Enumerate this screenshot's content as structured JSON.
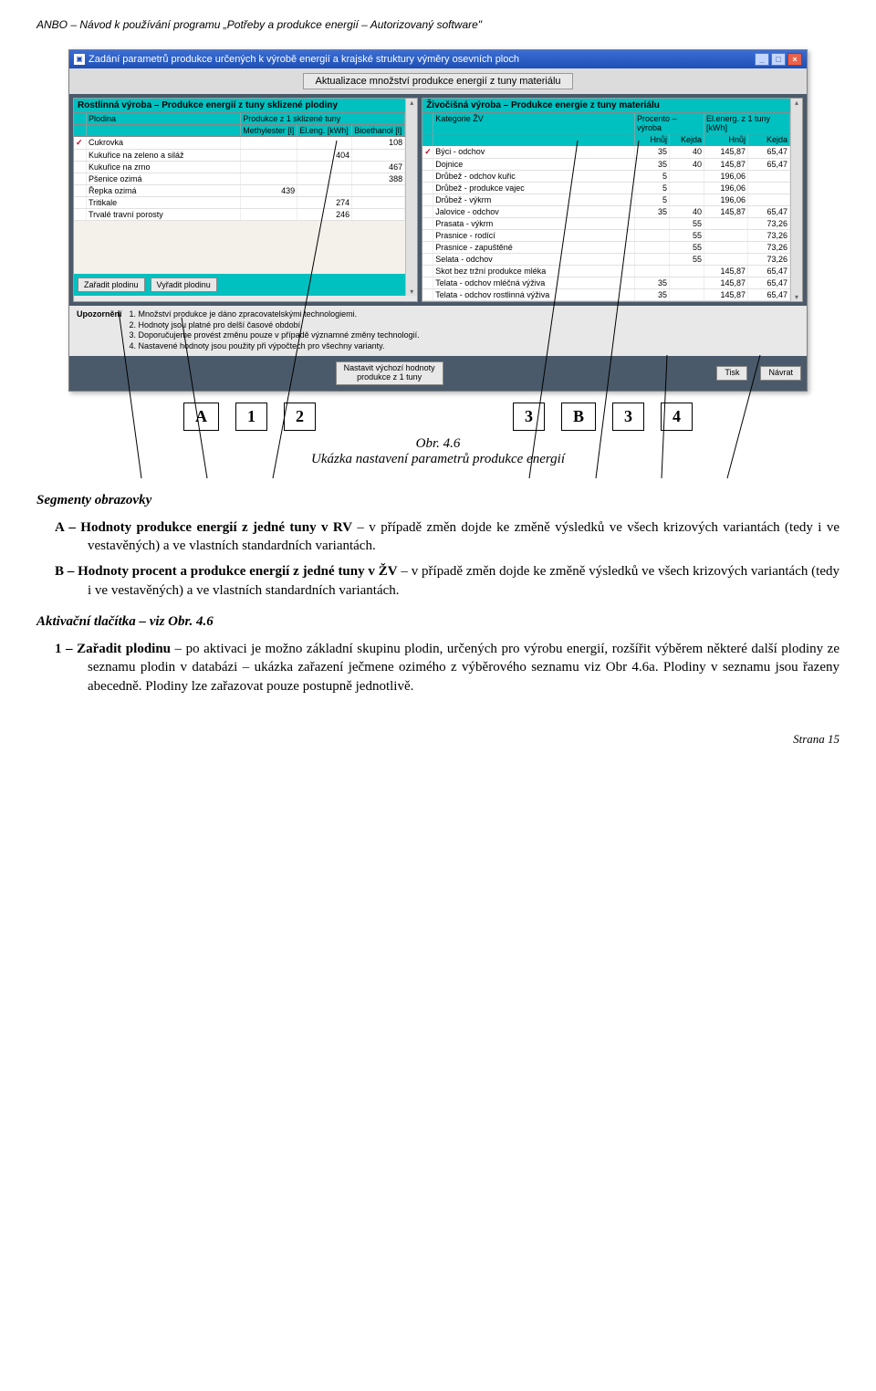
{
  "doc_header": "ANBO – Návod k používání programu „Potřeby a produkce energií – Autorizovaný software\"",
  "window": {
    "title": "Zadání parametrů produkce určených k výrobě energií a krajské struktury výměry osevních ploch",
    "subtitle": "Aktualizace množství produkce energií z tuny materiálu",
    "panel_left": {
      "title": "Rostlinná výroba – Produkce energií z tuny sklizené plodiny",
      "head_col1": "Plodina",
      "head_group": "Produkce z 1 sklizené tuny",
      "head_c2": "Methylester [l]",
      "head_c3": "El.eng. [kWh]",
      "head_c4": "Bioethanol [l]",
      "rows": [
        {
          "chk": "✓",
          "name": "Cukrovka",
          "me": "",
          "ee": "",
          "be": "108"
        },
        {
          "chk": "",
          "name": "Kukuřice na zeleno a siláž",
          "me": "",
          "ee": "404",
          "be": ""
        },
        {
          "chk": "",
          "name": "Kukuřice na zrno",
          "me": "",
          "ee": "",
          "be": "467"
        },
        {
          "chk": "",
          "name": "Pšenice ozimá",
          "me": "",
          "ee": "",
          "be": "388"
        },
        {
          "chk": "",
          "name": "Řepka ozimá",
          "me": "439",
          "ee": "",
          "be": ""
        },
        {
          "chk": "",
          "name": "Tritikale",
          "me": "",
          "ee": "274",
          "be": ""
        },
        {
          "chk": "",
          "name": "Trvalé travní porosty",
          "me": "",
          "ee": "246",
          "be": ""
        }
      ],
      "btn_add": "Zařadit plodinu",
      "btn_rem": "Vyřadit plodinu"
    },
    "panel_right": {
      "title": "Živočišná výroba – Produkce energie z tuny materiálu",
      "head_col1": "Kategorie ŽV",
      "head_group1": "Procento – výroba",
      "head_group2": "El.energ. z 1 tuny [kWh]",
      "sub_h1": "Hnůj",
      "sub_h2": "Kejda",
      "sub_h3": "Hnůj",
      "sub_h4": "Kejda",
      "rows": [
        {
          "chk": "✓",
          "name": "Býci - odchov",
          "p1": "35",
          "p2": "40",
          "e1": "145,87",
          "e2": "65,47"
        },
        {
          "chk": "",
          "name": "Dojnice",
          "p1": "35",
          "p2": "40",
          "e1": "145,87",
          "e2": "65,47"
        },
        {
          "chk": "",
          "name": "Drůbež - odchov kuřic",
          "p1": "5",
          "p2": "",
          "e1": "196,06",
          "e2": ""
        },
        {
          "chk": "",
          "name": "Drůbež - produkce vajec",
          "p1": "5",
          "p2": "",
          "e1": "196,06",
          "e2": ""
        },
        {
          "chk": "",
          "name": "Drůbež - výkrm",
          "p1": "5",
          "p2": "",
          "e1": "196,06",
          "e2": ""
        },
        {
          "chk": "",
          "name": "Jalovice - odchov",
          "p1": "35",
          "p2": "40",
          "e1": "145,87",
          "e2": "65,47"
        },
        {
          "chk": "",
          "name": "Prasata - výkrm",
          "p1": "",
          "p2": "55",
          "e1": "",
          "e2": "73,26"
        },
        {
          "chk": "",
          "name": "Prasnice - rodící",
          "p1": "",
          "p2": "55",
          "e1": "",
          "e2": "73,26"
        },
        {
          "chk": "",
          "name": "Prasnice - zapuštěné",
          "p1": "",
          "p2": "55",
          "e1": "",
          "e2": "73,26"
        },
        {
          "chk": "",
          "name": "Selata - odchov",
          "p1": "",
          "p2": "55",
          "e1": "",
          "e2": "73,26"
        },
        {
          "chk": "",
          "name": "Skot bez tržní produkce mléka",
          "p1": "",
          "p2": "",
          "e1": "145,87",
          "e2": "65,47"
        },
        {
          "chk": "",
          "name": "Telata - odchov mléčná výživa",
          "p1": "35",
          "p2": "",
          "e1": "145,87",
          "e2": "65,47"
        },
        {
          "chk": "",
          "name": "Telata - odchov rostlinná výživa",
          "p1": "35",
          "p2": "",
          "e1": "145,87",
          "e2": "65,47"
        }
      ]
    },
    "notice_label": "Upozornění",
    "notice_lines": [
      "1. Množství produkce je dáno zpracovatelskými technologiemi.",
      "2. Hodnoty jsou platné pro delší časové období.",
      "3. Doporučujeme provést změnu pouze v případě významné změny technologií.",
      "4. Nastavené hodnoty jsou použity při výpočtech pro všechny varianty."
    ],
    "btn_reset_l1": "Nastavit výchozí hodnoty",
    "btn_reset_l2": "produkce z 1 tuny",
    "btn_print": "Tisk",
    "btn_back": "Návrat"
  },
  "labels": {
    "A": "A",
    "n1": "1",
    "n2": "2",
    "n3": "3",
    "B": "B",
    "n3b": "3",
    "n4": "4"
  },
  "caption_l1": "Obr. 4.6",
  "caption_l2": "Ukázka nastavení parametrů produkce energií",
  "sec_seg": "Segmenty obrazovky",
  "seg_A_pre": "A – ",
  "seg_A_bold": "Hodnoty produkce energií z jedné tuny v RV",
  "seg_A_rest": " – v případě změn dojde ke změně výsledků ve všech krizových variantách (tedy i ve vestavěných) a ve vlastních standardních variantách.",
  "seg_B_pre": "B – ",
  "seg_B_bold": "Hodnoty procent a produkce energií z jedné tuny v ŽV",
  "seg_B_rest": " – v případě změn dojde ke změně výsledků ve všech krizových variantách (tedy i ve vestavěných) a ve vlastních standardních variantách.",
  "sec_act": "Aktivační tlačítka – viz Obr. 4.6",
  "act1_pre": "1 – ",
  "act1_bold": "Zařadit plodinu",
  "act1_rest": " – po aktivaci je možno základní skupinu plodin, určených pro výrobu energií, rozšířit výběrem některé další plodiny ze seznamu plodin v databázi – ukázka zařazení ječmene ozimého z výběrového seznamu viz Obr 4.6a. Plodiny v seznamu jsou řazeny abecedně. Plodiny lze zařazovat pouze postupně jednotlivě.",
  "page_num": "Strana 15"
}
